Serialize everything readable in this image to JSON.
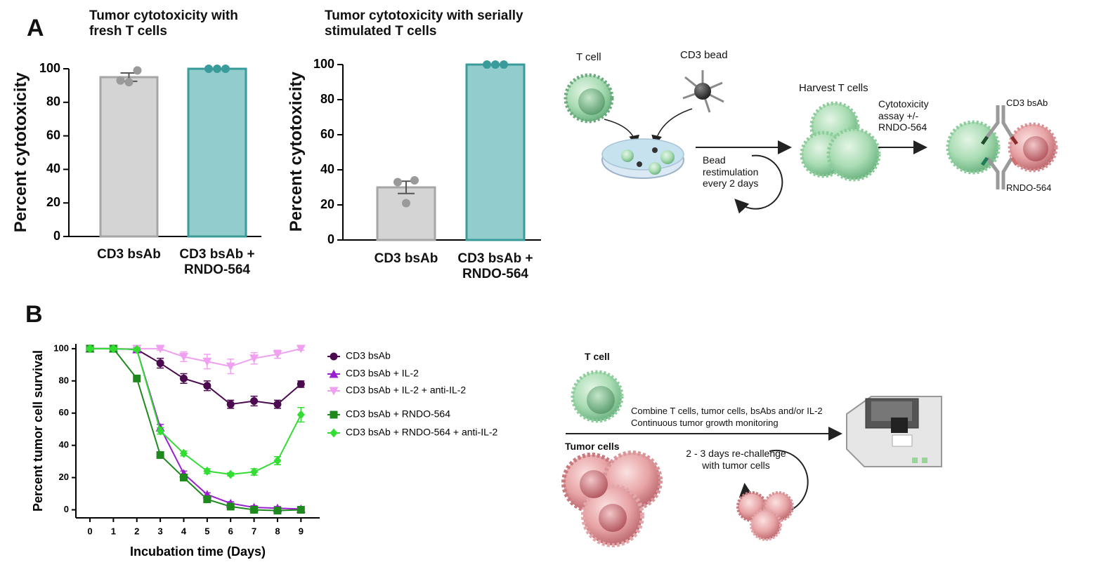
{
  "panel_labels": [
    "A",
    "B"
  ],
  "chart_data": [
    {
      "type": "bar",
      "title": "Tumor cytotoxicity with fresh T cells",
      "y_label": "Percent cytotoxicity",
      "categories": [
        "CD3 bsAb",
        "CD3 bsAb + RNDO-564"
      ],
      "values": [
        95,
        100
      ],
      "errors": [
        2.5,
        0
      ],
      "points": [
        [
          93,
          99,
          92
        ],
        [
          100,
          100,
          100
        ]
      ],
      "colors": [
        "#d4d4d4",
        "#93cccc"
      ],
      "edge_colors": [
        "#a6a6a6",
        "#3a9b9b"
      ],
      "point_colors": [
        "#9a9a9a",
        "#3a9b9b"
      ],
      "ylim": [
        0,
        100
      ],
      "yticks": [
        0,
        20,
        40,
        60,
        80,
        100
      ]
    },
    {
      "type": "bar",
      "title": "Tumor cytotoxicity with serially stimulated T cells",
      "y_label": "Percent cytotoxicity",
      "categories": [
        "CD3 bsAb",
        "CD3 bsAb + RNDO-564"
      ],
      "values": [
        30,
        100
      ],
      "errors": [
        3.5,
        0
      ],
      "points": [
        [
          33,
          34,
          21
        ],
        [
          100,
          100,
          100
        ]
      ],
      "colors": [
        "#d4d4d4",
        "#93cccc"
      ],
      "edge_colors": [
        "#a6a6a6",
        "#3a9b9b"
      ],
      "point_colors": [
        "#9a9a9a",
        "#3a9b9b"
      ],
      "ylim": [
        0,
        100
      ],
      "yticks": [
        0,
        20,
        40,
        60,
        80,
        100
      ]
    },
    {
      "type": "line",
      "x_label": "Incubation time (Days)",
      "y_label": "Percent tumor cell survival",
      "x": [
        0,
        1,
        2,
        3,
        4,
        5,
        6,
        7,
        8,
        9
      ],
      "xlim": [
        -0.6,
        9.8
      ],
      "ylim": [
        -5,
        103
      ],
      "xticks": [
        0,
        1,
        2,
        3,
        4,
        5,
        6,
        7,
        8,
        9
      ],
      "yticks": [
        0,
        20,
        40,
        60,
        80,
        100
      ],
      "legend": "right",
      "series": [
        {
          "name": "CD3 bsAb",
          "color": "#4b0a4f",
          "marker": "circle",
          "values": [
            100,
            100,
            99.5,
            91,
            81.5,
            77,
            65.5,
            67.5,
            65.5,
            78
          ],
          "errors": [
            1,
            1,
            1,
            3,
            3,
            3,
            2.5,
            3,
            2.5,
            2
          ]
        },
        {
          "name": "CD3 bsAb + IL-2",
          "color": "#9b1fd0",
          "marker": "triangle-up",
          "values": [
            100,
            100,
            99.5,
            51,
            22.5,
            9.5,
            4,
            1.5,
            1,
            0.5
          ],
          "errors": [
            1,
            1,
            1,
            2,
            1.5,
            1,
            1,
            1,
            1,
            1
          ]
        },
        {
          "name": "CD3 bsAb + IL-2 + anti-IL-2",
          "color": "#f0a0f0",
          "marker": "triangle-down",
          "values": [
            100,
            100,
            100,
            100,
            95,
            92,
            89,
            94,
            96.5,
            100
          ],
          "errors": [
            1,
            1,
            1,
            1,
            3,
            4.5,
            4.5,
            3.5,
            2.5,
            1
          ]
        },
        {
          "name": "CD3 bsAb + RNDO-564",
          "color": "#1e8a1e",
          "marker": "square",
          "values": [
            100,
            100,
            81.5,
            34,
            20,
            6.5,
            2,
            0,
            -0.5,
            0
          ],
          "errors": [
            1,
            1,
            1.5,
            1,
            1,
            1,
            1,
            1,
            1,
            1
          ]
        },
        {
          "name": "CD3 bsAb + RNDO-564 + anti-IL-2",
          "color": "#33dd33",
          "marker": "diamond",
          "values": [
            100,
            100,
            99.5,
            49,
            35,
            24,
            22,
            23.5,
            30.5,
            59
          ],
          "errors": [
            1,
            1,
            1,
            2,
            1.5,
            1.5,
            1,
            2,
            2.5,
            4.5
          ]
        }
      ]
    }
  ],
  "diagram_a": {
    "t_cell": "T cell",
    "cd3_bead": "CD3 bead",
    "restimulation": "Bead restimulation every 2 days",
    "harvest": "Harvest T cells",
    "assay": "Cytotoxicity assay +/- RNDO-564",
    "bsab": "CD3 bsAb",
    "rndo": "RNDO-564"
  },
  "diagram_b": {
    "t_cell": "T cell",
    "tumor_cells": "Tumor cells",
    "combine": "Combine T cells, tumor cells, bsAbs and/or IL-2",
    "monitoring": "Continuous tumor growth monitoring",
    "rechallenge": "2 - 3 days re-challenge with tumor cells"
  }
}
